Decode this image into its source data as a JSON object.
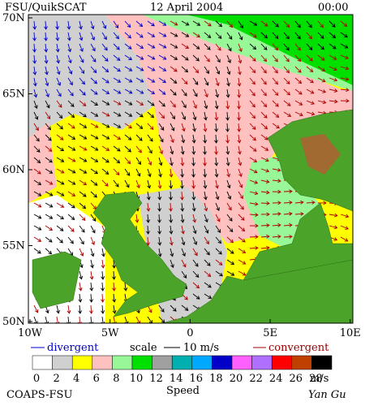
{
  "header": {
    "title": "FSU/QuikSCAT",
    "date": "12 April 2004",
    "time": "00:00"
  },
  "axes": {
    "latitude_labels": [
      "70N",
      "65N",
      "60N",
      "55N",
      "50N"
    ],
    "longitude_labels": [
      "10W",
      "5W",
      "0",
      "5E",
      "10E"
    ]
  },
  "legend": {
    "divergent": "divergent",
    "scale": "scale",
    "scale_value": "10 m/s",
    "convergent": "convergent"
  },
  "colorbar": {
    "labels": [
      0,
      2,
      4,
      6,
      8,
      10,
      12,
      14,
      16,
      18,
      20,
      22,
      24,
      26,
      28
    ],
    "colors": [
      "#ffffff",
      "#d0d0d0",
      "#ffff00",
      "#ffc0c0",
      "#98f898",
      "#00e000",
      "#a0a0a0",
      "#00b0b0",
      "#00a8ff",
      "#0000c8",
      "#ff60ff",
      "#b070ff",
      "#ff0000",
      "#c04000",
      "#000000"
    ],
    "unit": "m/s",
    "title": "Speed"
  },
  "footer": {
    "left": "COAPS-FSU",
    "right": "Yan Gu"
  }
}
